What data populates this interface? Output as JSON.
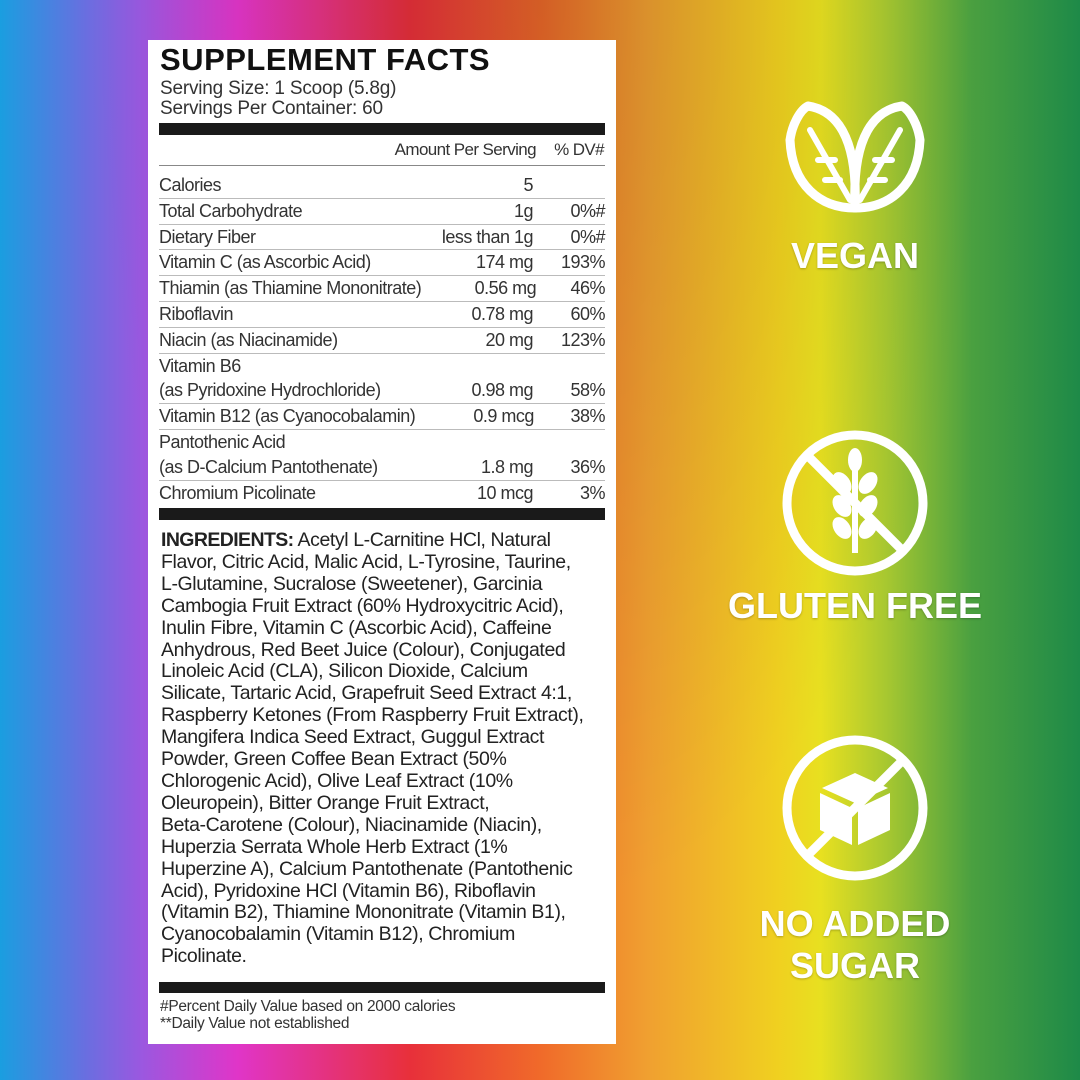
{
  "label": {
    "title": "SUPPLEMENT FACTS",
    "serving_size": "Serving Size: 1 Scoop (5.8g)",
    "servings_per_container": "Servings Per Container: 60",
    "header_amount": "Amount Per Serving",
    "header_dv": "% DV#",
    "rows": [
      {
        "name": "Calories",
        "amount": "5",
        "dv": ""
      },
      {
        "name": "Total Carbohydrate",
        "amount": "1g",
        "dv": "0%#"
      },
      {
        "name": "Dietary Fiber",
        "amount": "less than 1g",
        "dv": "0%#"
      },
      {
        "name": "Vitamin C (as Ascorbic Acid)",
        "amount": "174 mg",
        "dv": "193%"
      },
      {
        "name": "Thiamin (as Thiamine Mononitrate)",
        "amount": "0.56 mg",
        "dv": "46%"
      },
      {
        "name": "Riboflavin",
        "amount": "0.78 mg",
        "dv": "60%"
      },
      {
        "name": "Niacin (as Niacinamide)",
        "amount": "20 mg",
        "dv": "123%"
      },
      {
        "name": "Vitamin B6",
        "name2": "(as Pyridoxine Hydrochloride)",
        "amount": "0.98 mg",
        "dv": "58%"
      },
      {
        "name": "Vitamin B12 (as Cyanocobalamin)",
        "amount": "0.9 mcg",
        "dv": "38%"
      },
      {
        "name": "Pantothenic Acid",
        "name2": "(as D-Calcium Pantothenate)",
        "amount": "1.8 mg",
        "dv": "36%"
      },
      {
        "name": "Chromium Picolinate",
        "amount": "10 mcg",
        "dv": "3%"
      }
    ],
    "ingredients_heading": "INGREDIENTS:",
    "ingredients_lines": [
      " Acetyl L-Carnitine HCl, Natural",
      "Flavor, Citric Acid, Malic Acid, L-Tyrosine, Taurine,",
      "L-Glutamine, Sucralose (Sweetener), Garcinia",
      "Cambogia Fruit Extract (60% Hydroxycitric Acid),",
      "Inulin Fibre, Vitamin C (Ascorbic Acid), Caffeine",
      "Anhydrous, Red Beet Juice (Colour), Conjugated",
      "Linoleic Acid (CLA), Silicon Dioxide, Calcium",
      "Silicate, Tartaric Acid, Grapefruit Seed Extract 4:1,",
      "Raspberry Ketones (From Raspberry Fruit Extract),",
      "Mangifera Indica Seed Extract, Guggul Extract",
      "Powder, Green Coffee Bean Extract (50%",
      "Chlorogenic Acid), Olive Leaf Extract (10%",
      "Oleuropein), Bitter Orange Fruit Extract,",
      "Beta-Carotene (Colour), Niacinamide (Niacin),",
      "Huperzia Serrata Whole Herb Extract (1%",
      "Huperzine A), Calcium Pantothenate (Pantothenic",
      "Acid), Pyridoxine HCl (Vitamin B6), Riboflavin",
      "(Vitamin B2), Thiamine Mononitrate (Vitamin B1),",
      "Cyanocobalamin (Vitamin B12), Chromium",
      "Picolinate."
    ],
    "footnote_1": "#Percent Daily Value based on 2000 calories",
    "footnote_2": "**Daily Value not established"
  },
  "badges": [
    {
      "icon": "leaves-icon",
      "text": "VEGAN"
    },
    {
      "icon": "no-wheat-icon",
      "text": "GLUTEN FREE"
    },
    {
      "icon": "no-sugar-cube-icon",
      "text": "NO ADDED SUGAR"
    }
  ]
}
